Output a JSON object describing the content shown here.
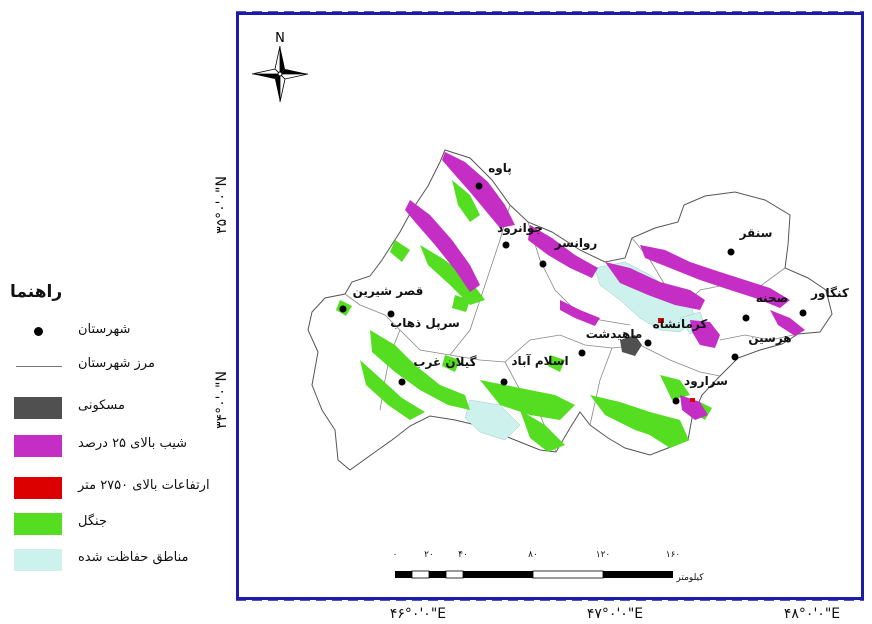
{
  "legend": {
    "title": "راهنما",
    "items": [
      {
        "label": "شهرستان",
        "symbol": "dot",
        "color": "#000000"
      },
      {
        "label": "مرز شهرستان",
        "symbol": "line",
        "color": "#777777"
      },
      {
        "label": "مسکونی",
        "symbol": "box",
        "color": "#505050"
      },
      {
        "label": "شیب بالای ۲۵ درصد",
        "symbol": "box",
        "color": "#c42ec4"
      },
      {
        "label": "ارتفاعات بالای ۲۷۵۰ متر",
        "symbol": "box",
        "color": "#dd0000"
      },
      {
        "label": "جنگل",
        "symbol": "box",
        "color": "#55dd22"
      },
      {
        "label": "مناطق حفاظت شده",
        "symbol": "box",
        "color": "#cdf2ee"
      }
    ]
  },
  "north_arrow": {
    "label": "N",
    "icon": "compass-rose-icon"
  },
  "coords": {
    "lon_46": "۴۶°۰'۰\"E",
    "lon_47": "۴۷°۰'۰\"E",
    "lon_48": "۴۸°۰'۰\"E",
    "lat_35": "۳۵°۰'۰\"N",
    "lat_34": "۳۴°۰'۰\"N"
  },
  "cities": [
    {
      "name": "پاوه"
    },
    {
      "name": "جوانرود"
    },
    {
      "name": "روانسر"
    },
    {
      "name": "سنقر"
    },
    {
      "name": "قصر شیرین"
    },
    {
      "name": "سرپل ذهاب"
    },
    {
      "name": "کرمانشاه"
    },
    {
      "name": "صحنه"
    },
    {
      "name": "کنگاور"
    },
    {
      "name": "هرسین"
    },
    {
      "name": "اسلام آباد"
    },
    {
      "name": "گیلان غرب"
    },
    {
      "name": "ماهیدشت"
    },
    {
      "name": "سرارود"
    }
  ],
  "scale": {
    "ticks": [
      "۰",
      "۲۰",
      "۴۰",
      "۸۰",
      "۱۲۰",
      "۱۶۰"
    ],
    "unit": "کیلومتر"
  }
}
